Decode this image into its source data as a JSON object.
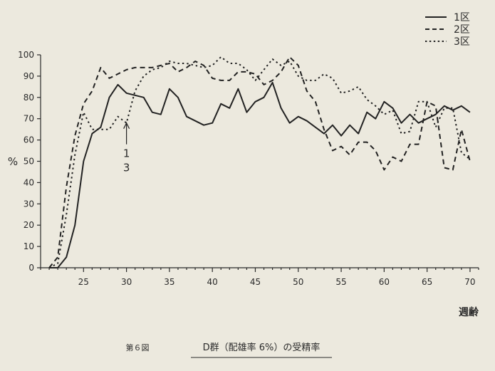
{
  "chart_data": {
    "type": "line",
    "title": "",
    "xlabel": "週齢",
    "ylabel": "%",
    "xlim": [
      20,
      71
    ],
    "ylim": [
      0,
      100
    ],
    "xticks": [
      25,
      30,
      35,
      40,
      45,
      50,
      55,
      60,
      65,
      70
    ],
    "yticks": [
      0,
      10,
      20,
      30,
      40,
      50,
      60,
      70,
      80,
      90,
      100
    ],
    "grid": false,
    "legend_position": "top-right",
    "annotation": {
      "x": 30,
      "y": 68,
      "lines": [
        "1",
        "3"
      ]
    },
    "series": [
      {
        "name": "1区",
        "style": "solid",
        "x": [
          21,
          22,
          23,
          24,
          25,
          26,
          27,
          28,
          29,
          30,
          31,
          32,
          33,
          34,
          35,
          36,
          37,
          38,
          39,
          40,
          41,
          42,
          43,
          44,
          45,
          46,
          47,
          48,
          49,
          50,
          51,
          52,
          53,
          54,
          55,
          56,
          57,
          58,
          59,
          60,
          61,
          62,
          63,
          64,
          65,
          66,
          67,
          68,
          69,
          70
        ],
        "values": [
          0,
          0,
          5,
          20,
          50,
          63,
          66,
          80,
          86,
          82,
          81,
          80,
          73,
          72,
          84,
          80,
          71,
          69,
          67,
          68,
          77,
          75,
          84,
          73,
          78,
          80,
          87,
          75,
          68,
          71,
          69,
          66,
          63,
          67,
          62,
          67,
          63,
          73,
          70,
          78,
          75,
          68,
          72,
          68,
          70,
          72,
          76,
          74,
          76,
          73
        ]
      },
      {
        "name": "2区",
        "style": "dashed",
        "x": [
          21,
          22,
          23,
          24,
          25,
          26,
          27,
          28,
          29,
          30,
          31,
          32,
          33,
          34,
          35,
          36,
          37,
          38,
          39,
          40,
          41,
          42,
          43,
          44,
          45,
          46,
          47,
          48,
          49,
          50,
          51,
          52,
          53,
          54,
          55,
          56,
          57,
          58,
          59,
          60,
          61,
          62,
          63,
          64,
          65,
          66,
          67,
          68,
          69,
          70
        ],
        "values": [
          0,
          5,
          38,
          62,
          77,
          83,
          94,
          89,
          91,
          93,
          94,
          94,
          94,
          95,
          96,
          92,
          94,
          97,
          95,
          89,
          88,
          88,
          92,
          92,
          91,
          86,
          88,
          92,
          99,
          95,
          83,
          78,
          65,
          55,
          57,
          53,
          59,
          59,
          55,
          46,
          52,
          50,
          58,
          58,
          78,
          76,
          47,
          46,
          65,
          50
        ]
      },
      {
        "name": "3区",
        "style": "dotted",
        "x": [
          21,
          22,
          23,
          24,
          25,
          26,
          27,
          28,
          29,
          30,
          31,
          32,
          33,
          34,
          35,
          36,
          37,
          38,
          39,
          40,
          41,
          42,
          43,
          44,
          45,
          46,
          47,
          48,
          49,
          50,
          51,
          52,
          53,
          54,
          55,
          56,
          57,
          58,
          59,
          60,
          61,
          62,
          63,
          64,
          65,
          66,
          67,
          68,
          69,
          70
        ],
        "values": [
          0,
          2,
          25,
          53,
          73,
          65,
          65,
          65,
          71,
          68,
          83,
          90,
          93,
          94,
          97,
          96,
          96,
          95,
          94,
          95,
          99,
          96,
          96,
          93,
          88,
          93,
          98,
          95,
          97,
          90,
          88,
          88,
          91,
          89,
          82,
          83,
          85,
          79,
          76,
          72,
          74,
          63,
          64,
          78,
          78,
          66,
          75,
          75,
          54,
          51
        ]
      }
    ]
  },
  "caption": {
    "figure_number": "第６図",
    "title": "D群（配雄率 6%）の受精率"
  }
}
